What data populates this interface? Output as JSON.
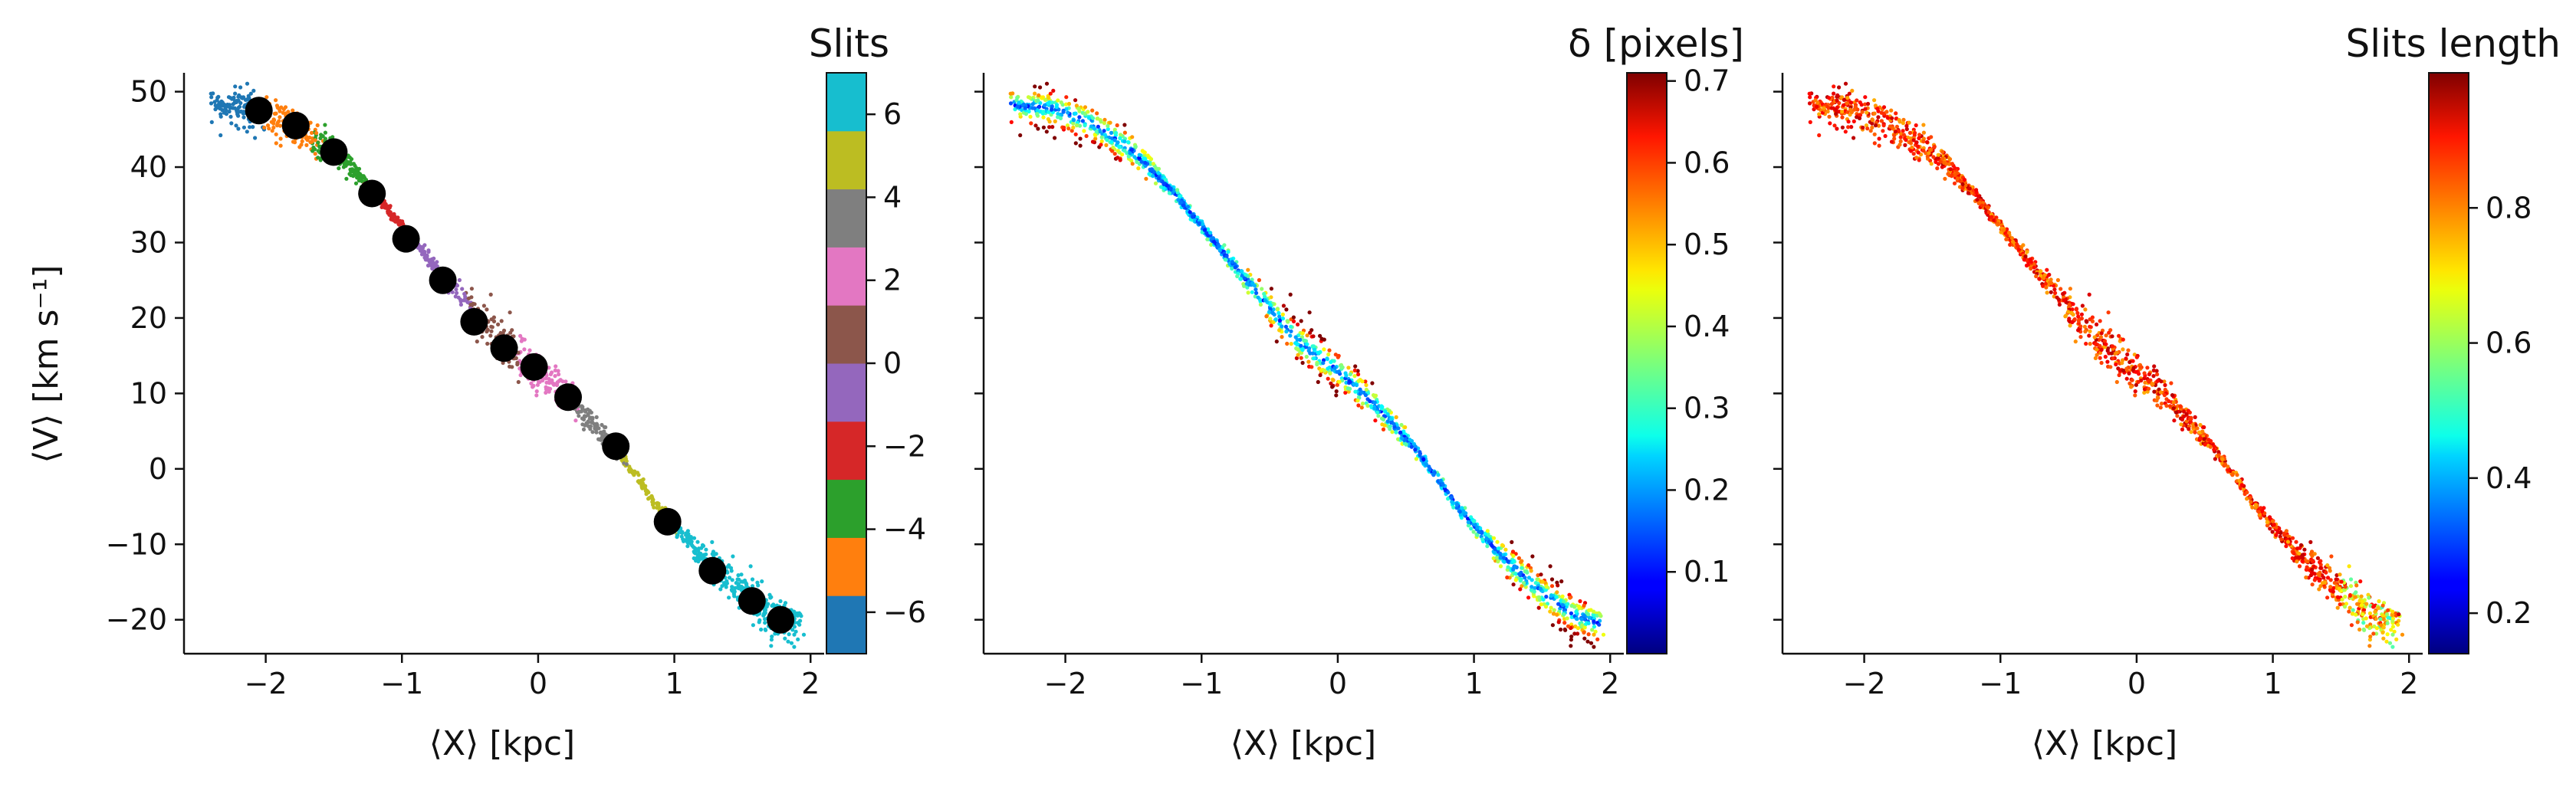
{
  "chart_data": [
    {
      "type": "scatter",
      "xlabel": "⟨X⟩ [kpc]",
      "ylabel": "⟨V⟩ [km s⁻¹]",
      "xlim": [
        -2.6,
        2.1
      ],
      "ylim": [
        -24.5,
        52.5
      ],
      "xticks": [
        -2,
        -1,
        0,
        1,
        2
      ],
      "yticks": [
        50,
        40,
        30,
        20,
        10,
        0,
        -10,
        -20
      ],
      "colorbar": {
        "title": "Slits",
        "kind": "discrete",
        "range": [
          -7,
          7
        ],
        "ticks": [
          6,
          4,
          2,
          0,
          -2,
          -4,
          -6
        ],
        "colors": [
          "#1f77b4",
          "#ff7f0e",
          "#2ca02c",
          "#d62728",
          "#9467bd",
          "#8c564b",
          "#e377c2",
          "#7f7f7f",
          "#bcbd22",
          "#17becf"
        ]
      },
      "slit_centers": [
        {
          "x": -2.05,
          "y": 47.5
        },
        {
          "x": -1.78,
          "y": 45.5
        },
        {
          "x": -1.5,
          "y": 42.0
        },
        {
          "x": -1.22,
          "y": 36.5
        },
        {
          "x": -0.97,
          "y": 30.5
        },
        {
          "x": -0.7,
          "y": 25.0
        },
        {
          "x": -0.47,
          "y": 19.5
        },
        {
          "x": -0.25,
          "y": 16.0
        },
        {
          "x": -0.03,
          "y": 13.5
        },
        {
          "x": 0.22,
          "y": 9.5
        },
        {
          "x": 0.57,
          "y": 3.0
        },
        {
          "x": 0.95,
          "y": -7.0
        },
        {
          "x": 1.28,
          "y": -13.5
        },
        {
          "x": 1.57,
          "y": -17.5
        },
        {
          "x": 1.78,
          "y": -20.0
        }
      ],
      "trend": [
        [
          -2.4,
          48.2
        ],
        [
          -2.1,
          47.8
        ],
        [
          -1.8,
          45.8
        ],
        [
          -1.5,
          42.0
        ],
        [
          -1.2,
          36.5
        ],
        [
          -0.9,
          30.0
        ],
        [
          -0.6,
          23.5
        ],
        [
          -0.3,
          17.0
        ],
        [
          0.0,
          13.0
        ],
        [
          0.3,
          8.0
        ],
        [
          0.6,
          2.0
        ],
        [
          0.9,
          -5.5
        ],
        [
          1.2,
          -11.5
        ],
        [
          1.5,
          -16.5
        ],
        [
          1.75,
          -19.5
        ],
        [
          1.92,
          -20.5
        ]
      ]
    },
    {
      "type": "scatter",
      "xlabel": "⟨X⟩ [kpc]",
      "xlim": [
        -2.6,
        2.1
      ],
      "ylim": [
        -24.5,
        52.5
      ],
      "xticks": [
        -2,
        -1,
        0,
        1,
        2
      ],
      "colorbar": {
        "title": "δ [pixels]",
        "kind": "continuous",
        "colormap": "jet",
        "range": [
          0.0,
          0.71
        ],
        "ticks": [
          0.7,
          0.6,
          0.5,
          0.4,
          0.3,
          0.2,
          0.1
        ]
      }
    },
    {
      "type": "scatter",
      "xlabel": "⟨X⟩ [kpc]",
      "xlim": [
        -2.6,
        2.1
      ],
      "ylim": [
        -24.5,
        52.5
      ],
      "xticks": [
        -2,
        -1,
        0,
        1,
        2
      ],
      "colorbar": {
        "title": "Slits length",
        "kind": "continuous",
        "colormap": "jet",
        "range": [
          0.14,
          1.0
        ],
        "ticks": [
          0.8,
          0.6,
          0.4,
          0.2
        ]
      }
    }
  ]
}
